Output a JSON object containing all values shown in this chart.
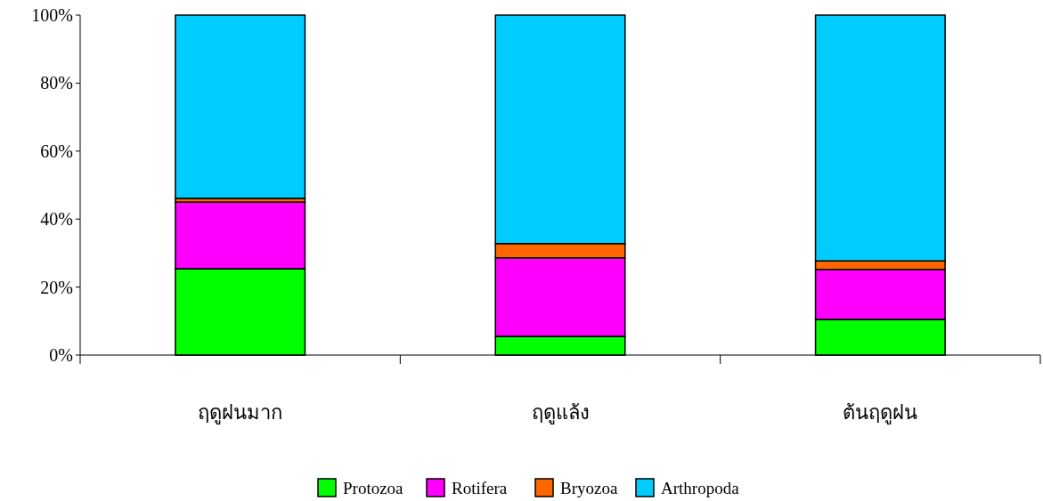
{
  "chart_data": {
    "type": "bar",
    "stacked": true,
    "categories": [
      "ฤดูฝนมาก",
      "ฤดูแล้ง",
      "ต้นฤดูฝน"
    ],
    "series": [
      {
        "name": "Protozoa",
        "color": "#00ff00",
        "values": [
          25.4,
          5.5,
          10.5
        ]
      },
      {
        "name": "Rotifera",
        "color": "#ff00ff",
        "values": [
          19.6,
          23.1,
          14.7
        ]
      },
      {
        "name": "Bryozoa",
        "color": "#ff6600",
        "values": [
          1.1,
          4.2,
          2.5
        ]
      },
      {
        "name": "Arthropoda",
        "color": "#00ccff",
        "values": [
          53.9,
          67.2,
          72.3
        ]
      }
    ],
    "ylim": [
      0,
      100
    ],
    "yticks": [
      {
        "value": 0,
        "label": "0%"
      },
      {
        "value": 20,
        "label": "20%"
      },
      {
        "value": 40,
        "label": "40%"
      },
      {
        "value": 60,
        "label": "60%"
      },
      {
        "value": 80,
        "label": "80%"
      },
      {
        "value": 100,
        "label": "100%"
      }
    ],
    "grid": false,
    "legend": "bottom"
  }
}
